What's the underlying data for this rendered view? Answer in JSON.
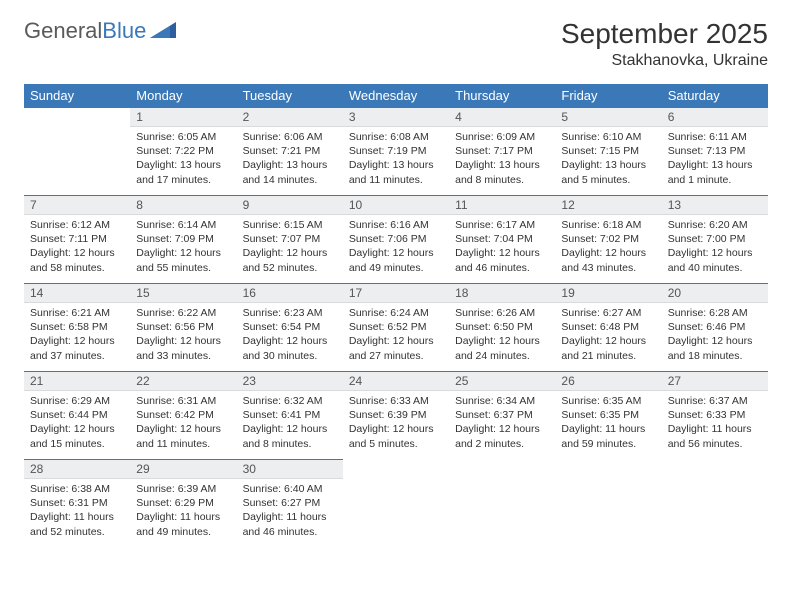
{
  "brand": {
    "part1": "General",
    "part2": "Blue"
  },
  "title": "September 2025",
  "location": "Stakhanovka, Ukraine",
  "colors": {
    "header_bg": "#3b78b8",
    "header_text": "#ffffff",
    "daynum_bg": "#eceeef",
    "border": "#3b78b8",
    "text": "#333333"
  },
  "weekdays": [
    "Sunday",
    "Monday",
    "Tuesday",
    "Wednesday",
    "Thursday",
    "Friday",
    "Saturday"
  ],
  "weeks": [
    [
      {
        "n": "",
        "sr": "",
        "ss": "",
        "dl": ""
      },
      {
        "n": "1",
        "sr": "Sunrise: 6:05 AM",
        "ss": "Sunset: 7:22 PM",
        "dl": "Daylight: 13 hours and 17 minutes."
      },
      {
        "n": "2",
        "sr": "Sunrise: 6:06 AM",
        "ss": "Sunset: 7:21 PM",
        "dl": "Daylight: 13 hours and 14 minutes."
      },
      {
        "n": "3",
        "sr": "Sunrise: 6:08 AM",
        "ss": "Sunset: 7:19 PM",
        "dl": "Daylight: 13 hours and 11 minutes."
      },
      {
        "n": "4",
        "sr": "Sunrise: 6:09 AM",
        "ss": "Sunset: 7:17 PM",
        "dl": "Daylight: 13 hours and 8 minutes."
      },
      {
        "n": "5",
        "sr": "Sunrise: 6:10 AM",
        "ss": "Sunset: 7:15 PM",
        "dl": "Daylight: 13 hours and 5 minutes."
      },
      {
        "n": "6",
        "sr": "Sunrise: 6:11 AM",
        "ss": "Sunset: 7:13 PM",
        "dl": "Daylight: 13 hours and 1 minute."
      }
    ],
    [
      {
        "n": "7",
        "sr": "Sunrise: 6:12 AM",
        "ss": "Sunset: 7:11 PM",
        "dl": "Daylight: 12 hours and 58 minutes."
      },
      {
        "n": "8",
        "sr": "Sunrise: 6:14 AM",
        "ss": "Sunset: 7:09 PM",
        "dl": "Daylight: 12 hours and 55 minutes."
      },
      {
        "n": "9",
        "sr": "Sunrise: 6:15 AM",
        "ss": "Sunset: 7:07 PM",
        "dl": "Daylight: 12 hours and 52 minutes."
      },
      {
        "n": "10",
        "sr": "Sunrise: 6:16 AM",
        "ss": "Sunset: 7:06 PM",
        "dl": "Daylight: 12 hours and 49 minutes."
      },
      {
        "n": "11",
        "sr": "Sunrise: 6:17 AM",
        "ss": "Sunset: 7:04 PM",
        "dl": "Daylight: 12 hours and 46 minutes."
      },
      {
        "n": "12",
        "sr": "Sunrise: 6:18 AM",
        "ss": "Sunset: 7:02 PM",
        "dl": "Daylight: 12 hours and 43 minutes."
      },
      {
        "n": "13",
        "sr": "Sunrise: 6:20 AM",
        "ss": "Sunset: 7:00 PM",
        "dl": "Daylight: 12 hours and 40 minutes."
      }
    ],
    [
      {
        "n": "14",
        "sr": "Sunrise: 6:21 AM",
        "ss": "Sunset: 6:58 PM",
        "dl": "Daylight: 12 hours and 37 minutes."
      },
      {
        "n": "15",
        "sr": "Sunrise: 6:22 AM",
        "ss": "Sunset: 6:56 PM",
        "dl": "Daylight: 12 hours and 33 minutes."
      },
      {
        "n": "16",
        "sr": "Sunrise: 6:23 AM",
        "ss": "Sunset: 6:54 PM",
        "dl": "Daylight: 12 hours and 30 minutes."
      },
      {
        "n": "17",
        "sr": "Sunrise: 6:24 AM",
        "ss": "Sunset: 6:52 PM",
        "dl": "Daylight: 12 hours and 27 minutes."
      },
      {
        "n": "18",
        "sr": "Sunrise: 6:26 AM",
        "ss": "Sunset: 6:50 PM",
        "dl": "Daylight: 12 hours and 24 minutes."
      },
      {
        "n": "19",
        "sr": "Sunrise: 6:27 AM",
        "ss": "Sunset: 6:48 PM",
        "dl": "Daylight: 12 hours and 21 minutes."
      },
      {
        "n": "20",
        "sr": "Sunrise: 6:28 AM",
        "ss": "Sunset: 6:46 PM",
        "dl": "Daylight: 12 hours and 18 minutes."
      }
    ],
    [
      {
        "n": "21",
        "sr": "Sunrise: 6:29 AM",
        "ss": "Sunset: 6:44 PM",
        "dl": "Daylight: 12 hours and 15 minutes."
      },
      {
        "n": "22",
        "sr": "Sunrise: 6:31 AM",
        "ss": "Sunset: 6:42 PM",
        "dl": "Daylight: 12 hours and 11 minutes."
      },
      {
        "n": "23",
        "sr": "Sunrise: 6:32 AM",
        "ss": "Sunset: 6:41 PM",
        "dl": "Daylight: 12 hours and 8 minutes."
      },
      {
        "n": "24",
        "sr": "Sunrise: 6:33 AM",
        "ss": "Sunset: 6:39 PM",
        "dl": "Daylight: 12 hours and 5 minutes."
      },
      {
        "n": "25",
        "sr": "Sunrise: 6:34 AM",
        "ss": "Sunset: 6:37 PM",
        "dl": "Daylight: 12 hours and 2 minutes."
      },
      {
        "n": "26",
        "sr": "Sunrise: 6:35 AM",
        "ss": "Sunset: 6:35 PM",
        "dl": "Daylight: 11 hours and 59 minutes."
      },
      {
        "n": "27",
        "sr": "Sunrise: 6:37 AM",
        "ss": "Sunset: 6:33 PM",
        "dl": "Daylight: 11 hours and 56 minutes."
      }
    ],
    [
      {
        "n": "28",
        "sr": "Sunrise: 6:38 AM",
        "ss": "Sunset: 6:31 PM",
        "dl": "Daylight: 11 hours and 52 minutes."
      },
      {
        "n": "29",
        "sr": "Sunrise: 6:39 AM",
        "ss": "Sunset: 6:29 PM",
        "dl": "Daylight: 11 hours and 49 minutes."
      },
      {
        "n": "30",
        "sr": "Sunrise: 6:40 AM",
        "ss": "Sunset: 6:27 PM",
        "dl": "Daylight: 11 hours and 46 minutes."
      },
      {
        "n": "",
        "sr": "",
        "ss": "",
        "dl": ""
      },
      {
        "n": "",
        "sr": "",
        "ss": "",
        "dl": ""
      },
      {
        "n": "",
        "sr": "",
        "ss": "",
        "dl": ""
      },
      {
        "n": "",
        "sr": "",
        "ss": "",
        "dl": ""
      }
    ]
  ]
}
